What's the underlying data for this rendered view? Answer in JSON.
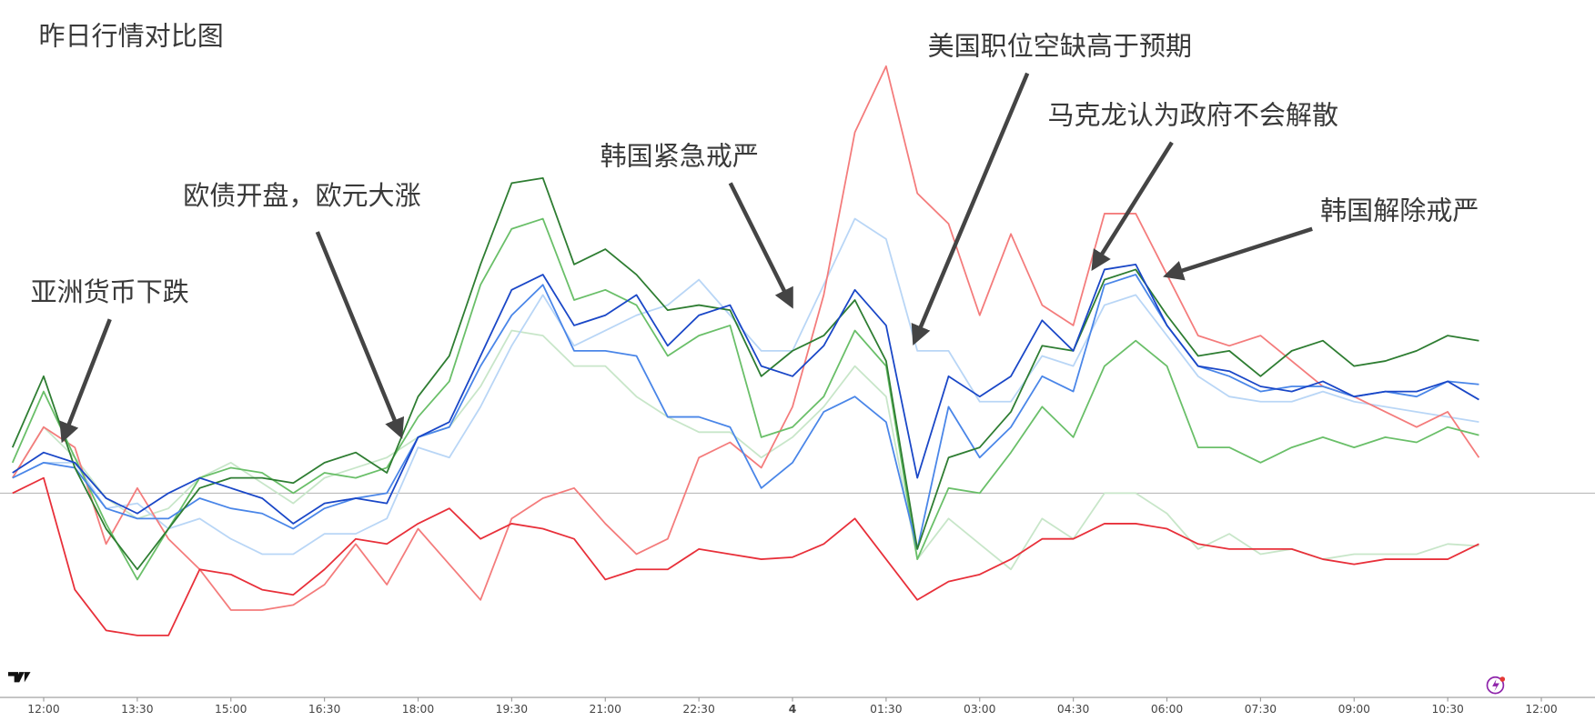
{
  "chart_data": {
    "type": "line",
    "title": "昨日行情对比图",
    "annotations": [
      "亚洲货币下跌",
      "欧债开盘，欧元大涨",
      "韩国紧急戒严",
      "美国职位空缺高于预期",
      "马克龙认为政府不会解散",
      "韩国解除戒严"
    ],
    "x": [
      -0.5,
      0,
      0.5,
      1,
      1.5,
      2,
      2.5,
      3,
      3.5,
      4,
      4.5,
      5,
      5.5,
      6,
      6.5,
      7,
      7.5,
      8,
      8.5,
      9,
      9.5,
      10,
      10.5,
      11,
      11.5,
      12,
      12.5,
      13,
      13.5,
      14,
      14.5,
      15,
      15.5,
      16,
      16.5,
      17,
      17.5,
      18,
      18.5,
      19,
      19.5,
      20,
      20.5,
      21,
      21.5,
      22,
      22.5,
      23
    ],
    "xlim": [
      -0.7,
      24.86
    ],
    "xticks": [
      {
        "value": 0,
        "label": "12:00"
      },
      {
        "value": 1.5,
        "label": "13:30"
      },
      {
        "value": 3,
        "label": "15:00"
      },
      {
        "value": 4.5,
        "label": "16:30"
      },
      {
        "value": 6,
        "label": "18:00"
      },
      {
        "value": 7.5,
        "label": "19:30"
      },
      {
        "value": 9,
        "label": "21:00"
      },
      {
        "value": 10.5,
        "label": "22:30"
      },
      {
        "value": 12,
        "label": "4"
      },
      {
        "value": 13.5,
        "label": "01:30"
      },
      {
        "value": 15,
        "label": "03:00"
      },
      {
        "value": 16.5,
        "label": "04:30"
      },
      {
        "value": 18,
        "label": "06:00"
      },
      {
        "value": 19.5,
        "label": "07:30"
      },
      {
        "value": 21,
        "label": "09:00"
      },
      {
        "value": 22.5,
        "label": "10:30"
      },
      {
        "value": 24,
        "label": "12:00"
      }
    ],
    "ylim": [
      -20,
      48.5
    ],
    "baseline": 0,
    "series": [
      {
        "color": "#c8e6c9",
        "values": [
          1.5,
          6.5,
          3.5,
          -0.5,
          -2.5,
          -1.5,
          1.5,
          3,
          1,
          -1,
          1.5,
          2.5,
          3.5,
          5.5,
          6.5,
          10.5,
          16,
          15.5,
          12.5,
          12.5,
          9.5,
          7.5,
          6,
          6,
          3.5,
          5.5,
          8.5,
          12.5,
          9.5,
          -6.5,
          -2.5,
          -5,
          -7.5,
          -2.5,
          -4.5,
          0,
          0,
          -2,
          -5.5,
          -4,
          -6,
          -5.5,
          -6.5,
          -6,
          -6,
          -6,
          -5,
          -5.2
        ]
      },
      {
        "color": "#b9d6f6",
        "values": [
          1.5,
          3,
          3,
          -1.5,
          -1,
          -3.5,
          -2.5,
          -4.5,
          -6,
          -6,
          -4,
          -4,
          -2.5,
          4.5,
          3.5,
          8.5,
          14.5,
          19.5,
          14.5,
          16,
          17.5,
          18.5,
          21,
          17.5,
          14,
          14,
          20.5,
          27,
          25,
          14,
          14,
          9,
          9,
          13.5,
          12.5,
          18.5,
          19.5,
          15.5,
          11.5,
          9.5,
          9,
          9,
          10,
          9,
          8.5,
          8,
          7.5,
          7
        ]
      },
      {
        "color": "#f47c7c",
        "values": [
          1.5,
          6.5,
          4.5,
          -5,
          0.5,
          -4.5,
          -7.5,
          -11.5,
          -11.5,
          -11,
          -9,
          -5,
          -9,
          -3.5,
          -7,
          -10.5,
          -2.5,
          -0.5,
          0.5,
          -3,
          -6,
          -4.5,
          3.5,
          5,
          2.5,
          8.5,
          19.5,
          35.5,
          42,
          29.5,
          26.5,
          17.5,
          25.5,
          18.5,
          16.5,
          27.5,
          27.5,
          21.5,
          15.5,
          14.5,
          15.5,
          13,
          10.5,
          9.5,
          8,
          6.5,
          8,
          3.5
        ]
      },
      {
        "color": "#6abf69",
        "values": [
          3,
          10,
          3.5,
          -3,
          -8.5,
          -3.5,
          1.5,
          2.5,
          2,
          0,
          2,
          1.5,
          2.5,
          7.5,
          11,
          20.5,
          26,
          27,
          19,
          20,
          18.5,
          13.5,
          15.5,
          16.5,
          5.5,
          6.5,
          9.5,
          16,
          12.5,
          -6.5,
          0.5,
          0,
          4,
          8.5,
          5.5,
          12.5,
          15,
          12.5,
          4.5,
          4.5,
          3,
          4.5,
          5.5,
          4.5,
          5.5,
          5,
          6.5,
          5.7
        ]
      },
      {
        "color": "#4a86e8",
        "values": [
          1.5,
          3,
          2.5,
          -1.5,
          -2.5,
          -2.5,
          -0.5,
          -1.5,
          -2,
          -3.5,
          -1.5,
          -0.5,
          0,
          5.5,
          6.5,
          12.5,
          17.5,
          20.5,
          14,
          14,
          13.5,
          7.5,
          7.5,
          6.5,
          0.5,
          3,
          8,
          9.5,
          7,
          -5.5,
          8.5,
          3.5,
          6.5,
          11.5,
          10,
          20.5,
          21.5,
          16.5,
          12.5,
          11.5,
          10,
          10.5,
          10.5,
          9.5,
          10,
          9.5,
          11,
          10.7
        ]
      },
      {
        "color": "#e8303a",
        "values": [
          0,
          1.5,
          -9.5,
          -13.5,
          -14,
          -14,
          -7.5,
          -8,
          -9.5,
          -10,
          -7.5,
          -4.5,
          -5,
          -3,
          -1.5,
          -4.5,
          -3,
          -3.5,
          -4.5,
          -8.5,
          -7.5,
          -7.5,
          -5.5,
          -6,
          -6.5,
          -6.3,
          -5,
          -2.5,
          -6.5,
          -10.5,
          -8.7,
          -8,
          -6.5,
          -4.5,
          -4.5,
          -3,
          -3,
          -3.5,
          -5,
          -5.5,
          -5.5,
          -5.5,
          -6.5,
          -7,
          -6.5,
          -6.5,
          -6.5,
          -5
        ]
      },
      {
        "color": "#2e7d32",
        "values": [
          4.5,
          11.5,
          2.5,
          -3.5,
          -7.5,
          -3.5,
          0.5,
          1.5,
          1.5,
          1,
          3,
          4,
          2,
          9.5,
          13.5,
          22.5,
          30.5,
          31,
          22.5,
          24,
          21.5,
          18,
          18.5,
          18,
          11.5,
          14,
          15.5,
          19,
          13,
          -5.5,
          3.5,
          4.5,
          8,
          14.5,
          14,
          21,
          22,
          17.5,
          13.5,
          14,
          11.5,
          14,
          15,
          12.5,
          13,
          14,
          15.5,
          15
        ]
      },
      {
        "color": "#1a47c7",
        "values": [
          2,
          4,
          3,
          -0.5,
          -2,
          0,
          1.5,
          0.5,
          -0.5,
          -3,
          -1,
          -0.5,
          -1,
          5.5,
          7,
          13.5,
          20,
          21.5,
          16.5,
          17.5,
          19.5,
          14.5,
          17.5,
          18.5,
          12.5,
          11.5,
          14.5,
          20,
          16.5,
          1.5,
          11.5,
          9.5,
          11.5,
          17,
          14,
          22,
          22.5,
          16.5,
          12.5,
          12,
          10.5,
          10,
          11,
          9.5,
          10,
          10,
          11,
          9.2
        ]
      }
    ]
  }
}
